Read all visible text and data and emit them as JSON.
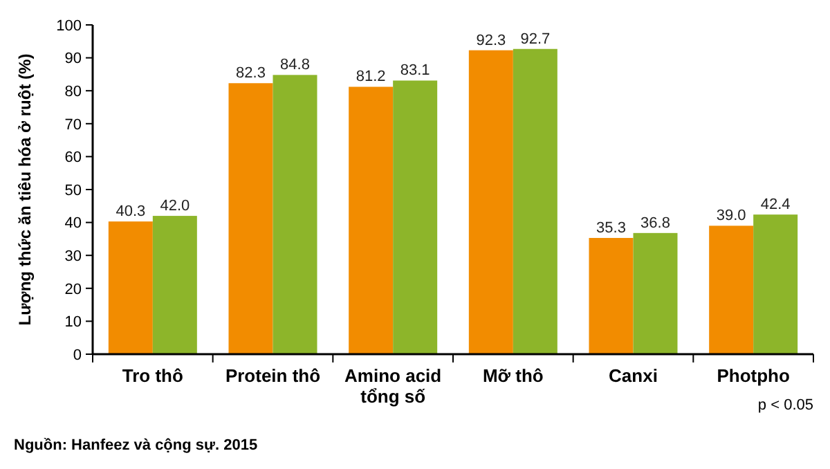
{
  "chart_data": {
    "type": "bar",
    "ylabel": "Lượng thức ăn tiêu hóa ở ruột (%)",
    "categories": [
      "Tro thô",
      "Protein thô",
      "Amino acid\ntổng số",
      "Mỡ thô",
      "Canxi",
      "Photpho"
    ],
    "series": [
      {
        "color": "#f28c00",
        "values": [
          40.3,
          82.3,
          81.2,
          92.3,
          35.3,
          39.0
        ]
      },
      {
        "color": "#8db52a",
        "values": [
          42.0,
          84.8,
          83.1,
          92.7,
          36.8,
          42.4
        ]
      }
    ],
    "value_labels": [
      [
        "40.3",
        "82.3",
        "81.2",
        "92.3",
        "35.3",
        "39.0"
      ],
      [
        "42.0",
        "84.8",
        "83.1",
        "92.7",
        "36.8",
        "42.4"
      ]
    ],
    "ylim": [
      0,
      100
    ],
    "yticks": [
      0,
      10,
      20,
      30,
      40,
      50,
      60,
      70,
      80,
      90,
      100
    ],
    "grid": false,
    "annotations": [
      "p < 0.05",
      "Nguồn: Hanfeez và cộng sự. 2015"
    ]
  }
}
